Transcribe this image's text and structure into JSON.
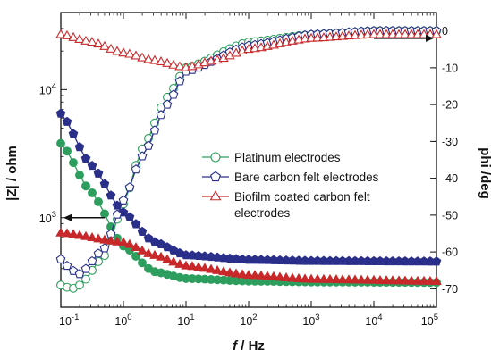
{
  "chart_data": {
    "type": "line",
    "xlabel_italic": "f",
    "xlabel_unit": " / Hz",
    "ylabel_left": "|Z| / ohm",
    "ylabel_right": "phi /deg",
    "x_scale": "log",
    "xlim": [
      0.1,
      100000
    ],
    "y_left_scale": "log",
    "y_left_lim": [
      200,
      40000
    ],
    "y_right_lim": [
      -75,
      5
    ],
    "x_ticks": [
      {
        "value": 0.1,
        "base": "10",
        "exp": "-1"
      },
      {
        "value": 1,
        "base": "10",
        "exp": "0"
      },
      {
        "value": 10,
        "base": "10",
        "exp": "1"
      },
      {
        "value": 100,
        "base": "10",
        "exp": "2"
      },
      {
        "value": 1000,
        "base": "10",
        "exp": "3"
      },
      {
        "value": 10000,
        "base": "10",
        "exp": "4"
      },
      {
        "value": 100000,
        "base": "10",
        "exp": "5"
      }
    ],
    "y_left_ticks": [
      {
        "value": 1000,
        "base": "10",
        "exp": "3"
      },
      {
        "value": 10000,
        "base": "10",
        "exp": "4"
      }
    ],
    "y_right_ticks": [
      0,
      -10,
      -20,
      -30,
      -40,
      -50,
      -60,
      -70
    ],
    "legend_position": "center-right",
    "legend": [
      {
        "label": "Platinum electrodes",
        "color": "#2e9e5e",
        "marker": "circle"
      },
      {
        "label": "Bare carbon felt electrodes",
        "color": "#2a2f8a",
        "marker": "pentagon"
      },
      {
        "label": "Biofilm coated carbon felt",
        "label_line2": "electrodes",
        "color": "#c8282a",
        "marker": "triangle"
      }
    ],
    "series": [
      {
        "name": "Platinum electrodes",
        "quantity": "|Z|",
        "axis": "left",
        "color": "#2e9e5e",
        "marker": "circle",
        "filled": true,
        "anchors": [
          [
            0.1,
            3800
          ],
          [
            0.3,
            1600
          ],
          [
            1,
            600
          ],
          [
            3,
            380
          ],
          [
            10,
            335
          ],
          [
            100,
            320
          ],
          [
            1000,
            315
          ],
          [
            100000,
            312
          ]
        ]
      },
      {
        "name": "Platinum electrodes",
        "quantity": "phi",
        "axis": "right",
        "color": "#2e9e5e",
        "marker": "circle",
        "filled": false,
        "anchors": [
          [
            0.1,
            -69
          ],
          [
            0.15,
            -70
          ],
          [
            0.2,
            -69
          ],
          [
            0.5,
            -61
          ],
          [
            1,
            -47
          ],
          [
            2,
            -32
          ],
          [
            5,
            -18
          ],
          [
            10,
            -10
          ],
          [
            100,
            -3
          ],
          [
            1000,
            -1
          ],
          [
            10000,
            0
          ],
          [
            100000,
            0
          ]
        ]
      },
      {
        "name": "Bare carbon felt electrodes",
        "quantity": "|Z|",
        "axis": "left",
        "color": "#2a2f8a",
        "marker": "pentagon",
        "filled": true,
        "anchors": [
          [
            0.1,
            6500
          ],
          [
            0.3,
            2600
          ],
          [
            1,
            1100
          ],
          [
            3,
            650
          ],
          [
            10,
            510
          ],
          [
            100,
            470
          ],
          [
            1000,
            460
          ],
          [
            100000,
            455
          ]
        ]
      },
      {
        "name": "Bare carbon felt electrodes",
        "quantity": "phi",
        "axis": "right",
        "color": "#2a2f8a",
        "marker": "pentagon",
        "filled": false,
        "anchors": [
          [
            0.1,
            -62
          ],
          [
            0.15,
            -65
          ],
          [
            0.2,
            -66
          ],
          [
            0.5,
            -59
          ],
          [
            1,
            -46
          ],
          [
            2,
            -34
          ],
          [
            5,
            -20
          ],
          [
            10,
            -11
          ],
          [
            100,
            -4
          ],
          [
            1000,
            -1
          ],
          [
            10000,
            0
          ],
          [
            100000,
            0
          ]
        ]
      },
      {
        "name": "Biofilm coated carbon felt electrodes",
        "quantity": "|Z|",
        "axis": "left",
        "color": "#c8282a",
        "marker": "triangle",
        "filled": true,
        "anchors": [
          [
            0.1,
            760
          ],
          [
            1,
            640
          ],
          [
            3,
            510
          ],
          [
            10,
            420
          ],
          [
            100,
            355
          ],
          [
            1000,
            330
          ],
          [
            100000,
            318
          ]
        ]
      },
      {
        "name": "Biofilm coated carbon felt electrodes",
        "quantity": "phi",
        "axis": "right",
        "color": "#c8282a",
        "marker": "triangle",
        "filled": false,
        "anchors": [
          [
            0.1,
            -1
          ],
          [
            0.3,
            -3
          ],
          [
            1,
            -6
          ],
          [
            3,
            -8
          ],
          [
            10,
            -10
          ],
          [
            30,
            -8
          ],
          [
            100,
            -5
          ],
          [
            1000,
            -2
          ],
          [
            10000,
            -1
          ],
          [
            100000,
            -1
          ]
        ]
      }
    ],
    "annotations": [
      {
        "type": "arrow",
        "direction": "left",
        "points_to": "left axis",
        "x": 0.5,
        "y": 1000
      },
      {
        "type": "arrow",
        "direction": "right",
        "points_to": "right axis",
        "x": 10000,
        "y": -2
      }
    ]
  }
}
